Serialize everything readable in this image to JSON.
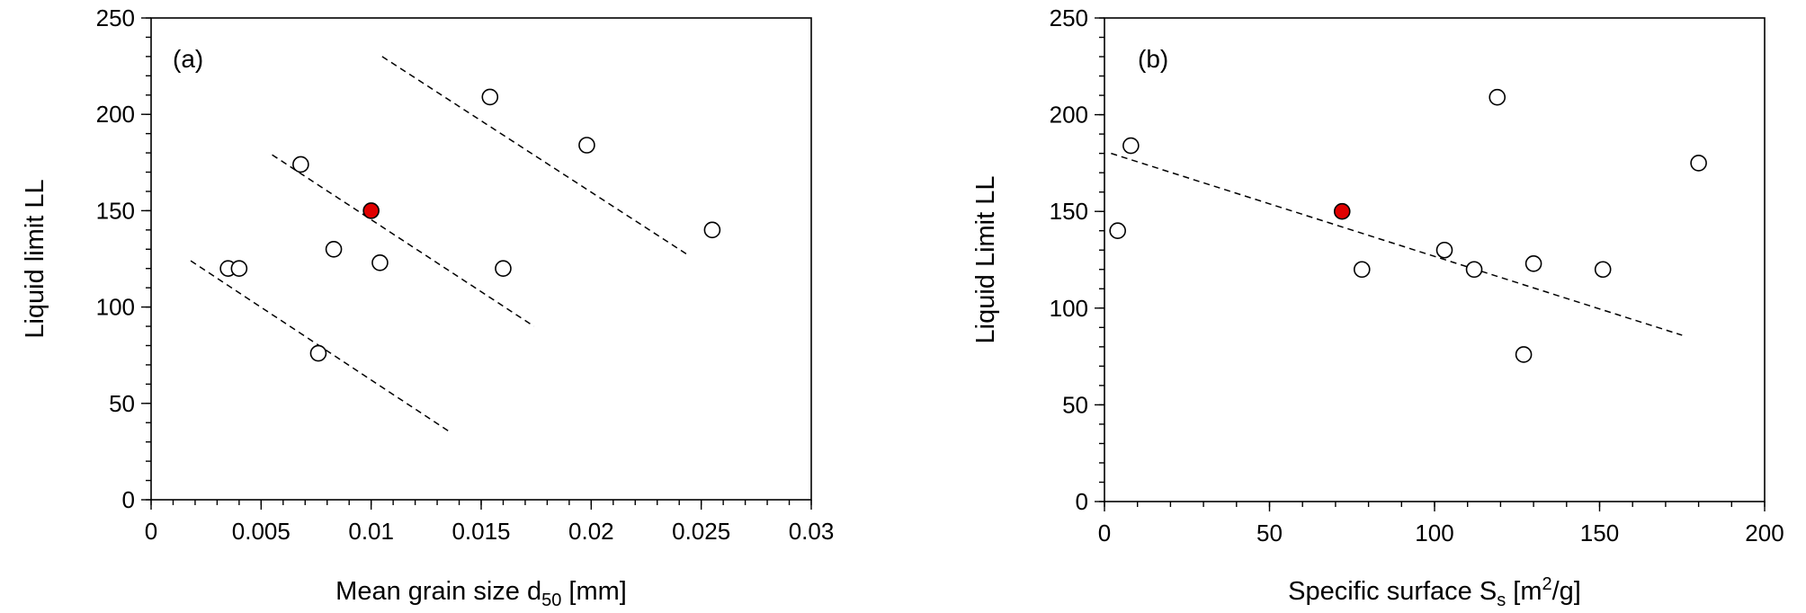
{
  "chart_data": [
    {
      "type": "scatter",
      "panel_label": "(a)",
      "xlabel": {
        "main": "Mean grain size d",
        "sub": "50",
        "tail": " [mm]"
      },
      "ylabel": "Liquid limit LL",
      "xlim": [
        0,
        0.03
      ],
      "ylim": [
        0,
        250
      ],
      "xticks": [
        "0",
        "0.005",
        "0.01",
        "0.015",
        "0.02",
        "0.025",
        "0.03"
      ],
      "xtick_values": [
        0,
        0.005,
        0.01,
        0.015,
        0.02,
        0.025,
        0.03
      ],
      "xminor_step": 0.001,
      "yticks": [
        "0",
        "50",
        "100",
        "150",
        "200",
        "250"
      ],
      "ytick_values": [
        0,
        50,
        100,
        150,
        200,
        250
      ],
      "yminor_step": 10,
      "grid": false,
      "points": [
        {
          "x": 0.0035,
          "y": 120,
          "highlight": false
        },
        {
          "x": 0.004,
          "y": 120,
          "highlight": false
        },
        {
          "x": 0.0068,
          "y": 174,
          "highlight": false
        },
        {
          "x": 0.0076,
          "y": 76,
          "highlight": false
        },
        {
          "x": 0.0083,
          "y": 130,
          "highlight": false
        },
        {
          "x": 0.01,
          "y": 150,
          "highlight": true
        },
        {
          "x": 0.0104,
          "y": 123,
          "highlight": false
        },
        {
          "x": 0.0154,
          "y": 209,
          "highlight": false
        },
        {
          "x": 0.016,
          "y": 120,
          "highlight": false
        },
        {
          "x": 0.0198,
          "y": 184,
          "highlight": false
        },
        {
          "x": 0.0255,
          "y": 140,
          "highlight": false
        }
      ],
      "trendlines": [
        {
          "x": [
            0.0018,
            0.0136
          ],
          "y": [
            124,
            35
          ]
        },
        {
          "x": [
            0.0055,
            0.0174
          ],
          "y": [
            179,
            90
          ]
        },
        {
          "x": [
            0.0105,
            0.0244
          ],
          "y": [
            230,
            127
          ]
        }
      ]
    },
    {
      "type": "scatter",
      "panel_label": "(b)",
      "xlabel": {
        "main": "Specific surface S",
        "sub": "s",
        "tail": " [m",
        "sup": "2",
        "tail2": "/g]"
      },
      "ylabel": "Liquid Limit LL",
      "xlim": [
        0,
        200
      ],
      "ylim": [
        0,
        250
      ],
      "xticks": [
        "0",
        "50",
        "100",
        "150",
        "200"
      ],
      "xtick_values": [
        0,
        50,
        100,
        150,
        200
      ],
      "xminor_step": 10,
      "yticks": [
        "0",
        "50",
        "100",
        "150",
        "200",
        "250"
      ],
      "ytick_values": [
        0,
        50,
        100,
        150,
        200,
        250
      ],
      "yminor_step": 10,
      "grid": false,
      "points": [
        {
          "x": 4,
          "y": 140,
          "highlight": false
        },
        {
          "x": 8,
          "y": 184,
          "highlight": false
        },
        {
          "x": 72,
          "y": 150,
          "highlight": true
        },
        {
          "x": 78,
          "y": 120,
          "highlight": false
        },
        {
          "x": 103,
          "y": 130,
          "highlight": false
        },
        {
          "x": 112,
          "y": 120,
          "highlight": false
        },
        {
          "x": 119,
          "y": 209,
          "highlight": false
        },
        {
          "x": 127,
          "y": 76,
          "highlight": false
        },
        {
          "x": 130,
          "y": 123,
          "highlight": false
        },
        {
          "x": 151,
          "y": 120,
          "highlight": false
        },
        {
          "x": 180,
          "y": 175,
          "highlight": false
        }
      ],
      "trendlines": [
        {
          "x": [
            2,
            175
          ],
          "y": [
            180,
            86
          ]
        }
      ]
    }
  ],
  "colors": {
    "highlight_fill": "#e00000",
    "point_fill": "#ffffff",
    "stroke": "#000000"
  }
}
